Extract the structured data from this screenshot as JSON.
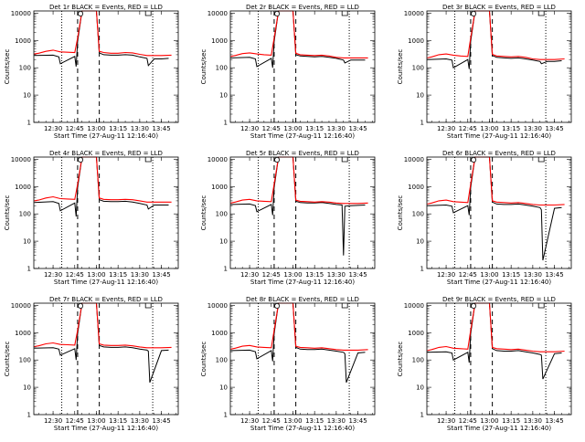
{
  "chart_data": {
    "type": "line",
    "layout": "3x3 grid of panels",
    "yscale": "log",
    "ylim": [
      1,
      12000
    ],
    "y_ticks": [
      1,
      10,
      100,
      1000,
      10000
    ],
    "y_tick_labels": [
      "1",
      "10",
      "100",
      "1000",
      "10000"
    ],
    "ylabel": "Counts/sec",
    "xlabel": "Start Time (27-Aug-11 12:16:40)",
    "xlim": [
      "12:16:40",
      "13:56:40"
    ],
    "x_ticks": [
      "12:30",
      "12:45",
      "13:00",
      "13:15",
      "13:30",
      "13:45"
    ],
    "series_colors": {
      "events": "#000000",
      "lld": "#ff0000"
    },
    "markers": {
      "dashed_lines": [
        "12:47",
        "13:02"
      ],
      "dotted_lines": [
        "12:36",
        "13:39"
      ],
      "saa_symbol": "12:49",
      "note_symbol": "13:34"
    },
    "panels": [
      {
        "title": "Det 1r BLACK = Events, RED = LLD",
        "events": {
          "x": [
            "12:17",
            "12:30",
            "12:34",
            "12:35",
            "12:45",
            "12:46",
            "12:47",
            "12:50",
            "12:52",
            "12:55",
            "13:00",
            "13:02",
            "13:05",
            "13:10",
            "13:15",
            "13:20",
            "13:25",
            "13:30",
            "13:35",
            "13:36",
            "13:40",
            "13:45",
            "13:50"
          ],
          "y": [
            280,
            290,
            250,
            140,
            260,
            110,
            900,
            12000,
            12000,
            12000,
            12000,
            350,
            300,
            290,
            290,
            300,
            290,
            250,
            220,
            120,
            210,
            210,
            220
          ]
        },
        "lld": {
          "x": [
            "12:17",
            "12:20",
            "12:25",
            "12:30",
            "12:35",
            "12:40",
            "12:45",
            "12:47",
            "12:50",
            "12:52",
            "12:55",
            "13:00",
            "13:02",
            "13:05",
            "13:10",
            "13:15",
            "13:20",
            "13:25",
            "13:30",
            "13:35",
            "13:40",
            "13:45",
            "13:52"
          ],
          "y": [
            320,
            340,
            400,
            440,
            380,
            370,
            360,
            1200,
            12000,
            12000,
            12000,
            12000,
            400,
            360,
            340,
            340,
            360,
            350,
            310,
            280,
            280,
            280,
            290
          ]
        }
      },
      {
        "title": "Det 2r BLACK = Events, RED = LLD",
        "events": {
          "x": [
            "12:17",
            "12:30",
            "12:34",
            "12:35",
            "12:45",
            "12:46",
            "12:47",
            "12:50",
            "12:52",
            "12:55",
            "13:00",
            "13:02",
            "13:05",
            "13:10",
            "13:15",
            "13:20",
            "13:25",
            "13:30",
            "13:35",
            "13:36",
            "13:40",
            "13:45",
            "13:50"
          ],
          "y": [
            230,
            240,
            210,
            110,
            220,
            100,
            900,
            12000,
            12000,
            12000,
            12000,
            300,
            270,
            260,
            250,
            260,
            240,
            220,
            190,
            150,
            190,
            190,
            190
          ]
        },
        "lld": {
          "x": [
            "12:17",
            "12:20",
            "12:25",
            "12:30",
            "12:35",
            "12:40",
            "12:45",
            "12:47",
            "12:50",
            "12:52",
            "12:55",
            "13:00",
            "13:02",
            "13:05",
            "13:10",
            "13:15",
            "13:20",
            "13:25",
            "13:30",
            "13:35",
            "13:40",
            "13:45",
            "13:52"
          ],
          "y": [
            260,
            280,
            330,
            350,
            320,
            300,
            290,
            1200,
            12000,
            12000,
            12000,
            12000,
            340,
            300,
            290,
            280,
            290,
            270,
            240,
            230,
            230,
            230,
            230
          ]
        }
      },
      {
        "title": "Det 3r BLACK = Events, RED = LLD",
        "events": {
          "x": [
            "12:17",
            "12:30",
            "12:34",
            "12:35",
            "12:45",
            "12:46",
            "12:47",
            "12:50",
            "12:52",
            "12:55",
            "13:00",
            "13:02",
            "13:05",
            "13:10",
            "13:15",
            "13:20",
            "13:25",
            "13:30",
            "13:35",
            "13:36",
            "13:40",
            "13:45",
            "13:50"
          ],
          "y": [
            200,
            210,
            190,
            100,
            200,
            90,
            900,
            12000,
            12000,
            12000,
            12000,
            280,
            240,
            230,
            220,
            230,
            210,
            190,
            170,
            140,
            170,
            170,
            180
          ]
        },
        "lld": {
          "x": [
            "12:17",
            "12:20",
            "12:25",
            "12:30",
            "12:35",
            "12:40",
            "12:45",
            "12:47",
            "12:50",
            "12:52",
            "12:55",
            "13:00",
            "13:02",
            "13:05",
            "13:10",
            "13:15",
            "13:20",
            "13:25",
            "13:30",
            "13:35",
            "13:40",
            "13:45",
            "13:52"
          ],
          "y": [
            230,
            250,
            300,
            320,
            290,
            270,
            260,
            1200,
            12000,
            12000,
            12000,
            12000,
            310,
            270,
            260,
            250,
            260,
            240,
            210,
            200,
            200,
            200,
            210
          ]
        }
      },
      {
        "title": "Det 4r BLACK = Events, RED = LLD",
        "events": {
          "x": [
            "12:17",
            "12:30",
            "12:34",
            "12:35",
            "12:45",
            "12:46",
            "12:47",
            "12:50",
            "12:52",
            "12:55",
            "13:00",
            "13:02",
            "13:05",
            "13:10",
            "13:15",
            "13:20",
            "13:25",
            "13:30",
            "13:35",
            "13:36",
            "13:40",
            "13:45",
            "13:50"
          ],
          "y": [
            260,
            280,
            240,
            130,
            250,
            80,
            900,
            12000,
            12000,
            12000,
            12000,
            330,
            290,
            280,
            280,
            290,
            270,
            240,
            210,
            150,
            210,
            210,
            210
          ]
        },
        "lld": {
          "x": [
            "12:17",
            "12:20",
            "12:25",
            "12:30",
            "12:35",
            "12:40",
            "12:45",
            "12:47",
            "12:50",
            "12:52",
            "12:55",
            "13:00",
            "13:02",
            "13:05",
            "13:10",
            "13:15",
            "13:20",
            "13:25",
            "13:30",
            "13:35",
            "13:40",
            "13:45",
            "13:52"
          ],
          "y": [
            300,
            320,
            380,
            420,
            360,
            350,
            340,
            1200,
            12000,
            12000,
            12000,
            12000,
            380,
            340,
            330,
            330,
            340,
            330,
            300,
            270,
            270,
            270,
            270
          ]
        }
      },
      {
        "title": "Det 5r BLACK = Events, RED = LLD",
        "events": {
          "x": [
            "12:17",
            "12:30",
            "12:34",
            "12:35",
            "12:45",
            "12:46",
            "12:47",
            "12:50",
            "12:52",
            "12:55",
            "13:00",
            "13:02",
            "13:05",
            "13:10",
            "13:15",
            "13:20",
            "13:25",
            "13:30",
            "13:34",
            "13:35",
            "13:36",
            "13:40",
            "13:50"
          ],
          "y": [
            220,
            230,
            200,
            120,
            220,
            90,
            900,
            12000,
            12000,
            12000,
            12000,
            290,
            260,
            250,
            250,
            260,
            240,
            220,
            210,
            3,
            190,
            200,
            210
          ]
        },
        "lld": {
          "x": [
            "12:17",
            "12:20",
            "12:25",
            "12:30",
            "12:35",
            "12:40",
            "12:45",
            "12:47",
            "12:50",
            "12:52",
            "12:55",
            "13:00",
            "13:02",
            "13:05",
            "13:10",
            "13:15",
            "13:20",
            "13:25",
            "13:30",
            "13:35",
            "13:40",
            "13:45",
            "13:52"
          ],
          "y": [
            250,
            270,
            320,
            340,
            300,
            290,
            280,
            1200,
            12000,
            12000,
            12000,
            12000,
            320,
            290,
            280,
            270,
            280,
            270,
            250,
            240,
            240,
            240,
            250
          ]
        }
      },
      {
        "title": "Det 6r BLACK = Events, RED = LLD",
        "events": {
          "x": [
            "12:17",
            "12:30",
            "12:34",
            "12:35",
            "12:45",
            "12:46",
            "12:47",
            "12:50",
            "12:52",
            "12:55",
            "13:00",
            "13:02",
            "13:05",
            "13:10",
            "13:15",
            "13:20",
            "13:25",
            "13:30",
            "13:35",
            "13:36",
            "13:37",
            "13:45",
            "13:50"
          ],
          "y": [
            200,
            210,
            190,
            110,
            200,
            90,
            900,
            12000,
            12000,
            12000,
            12000,
            270,
            230,
            220,
            220,
            230,
            210,
            190,
            170,
            140,
            2,
            160,
            170
          ]
        },
        "lld": {
          "x": [
            "12:17",
            "12:20",
            "12:25",
            "12:30",
            "12:35",
            "12:40",
            "12:45",
            "12:47",
            "12:50",
            "12:52",
            "12:55",
            "13:00",
            "13:02",
            "13:05",
            "13:10",
            "13:15",
            "13:20",
            "13:25",
            "13:30",
            "13:35",
            "13:40",
            "13:45",
            "13:52"
          ],
          "y": [
            230,
            250,
            300,
            320,
            280,
            270,
            260,
            1200,
            12000,
            12000,
            12000,
            12000,
            300,
            270,
            260,
            250,
            260,
            240,
            220,
            210,
            210,
            210,
            220
          ]
        }
      },
      {
        "title": "Det 7r BLACK = Events, RED = LLD",
        "events": {
          "x": [
            "12:17",
            "12:30",
            "12:34",
            "12:35",
            "12:45",
            "12:46",
            "12:47",
            "12:50",
            "12:52",
            "12:55",
            "13:00",
            "13:02",
            "13:05",
            "13:10",
            "13:15",
            "13:20",
            "13:25",
            "13:30",
            "13:35",
            "13:36",
            "13:37",
            "13:45",
            "13:50"
          ],
          "y": [
            270,
            280,
            250,
            150,
            260,
            100,
            900,
            12000,
            12000,
            12000,
            12000,
            340,
            300,
            290,
            290,
            300,
            280,
            250,
            230,
            210,
            15,
            220,
            230
          ]
        },
        "lld": {
          "x": [
            "12:17",
            "12:20",
            "12:25",
            "12:30",
            "12:35",
            "12:40",
            "12:45",
            "12:47",
            "12:50",
            "12:52",
            "12:55",
            "13:00",
            "13:02",
            "13:05",
            "13:10",
            "13:15",
            "13:20",
            "13:25",
            "13:30",
            "13:35",
            "13:40",
            "13:45",
            "13:52"
          ],
          "y": [
            310,
            330,
            390,
            420,
            370,
            360,
            350,
            1200,
            12000,
            12000,
            12000,
            12000,
            390,
            350,
            340,
            340,
            350,
            330,
            300,
            280,
            280,
            280,
            290
          ]
        }
      },
      {
        "title": "Det 8r BLACK = Events, RED = LLD",
        "events": {
          "x": [
            "12:17",
            "12:30",
            "12:34",
            "12:35",
            "12:45",
            "12:46",
            "12:47",
            "12:50",
            "12:52",
            "12:55",
            "13:00",
            "13:02",
            "13:05",
            "13:10",
            "13:15",
            "13:20",
            "13:25",
            "13:30",
            "13:35",
            "13:36",
            "13:37",
            "13:45",
            "13:50"
          ],
          "y": [
            220,
            230,
            200,
            110,
            220,
            90,
            900,
            12000,
            12000,
            12000,
            12000,
            290,
            250,
            240,
            240,
            250,
            230,
            210,
            190,
            170,
            15,
            180,
            190
          ]
        },
        "lld": {
          "x": [
            "12:17",
            "12:20",
            "12:25",
            "12:30",
            "12:35",
            "12:40",
            "12:45",
            "12:47",
            "12:50",
            "12:52",
            "12:55",
            "13:00",
            "13:02",
            "13:05",
            "13:10",
            "13:15",
            "13:20",
            "13:25",
            "13:30",
            "13:35",
            "13:40",
            "13:45",
            "13:52"
          ],
          "y": [
            250,
            270,
            320,
            340,
            300,
            290,
            280,
            1200,
            12000,
            12000,
            12000,
            12000,
            320,
            290,
            280,
            270,
            280,
            260,
            240,
            230,
            230,
            230,
            240
          ]
        }
      },
      {
        "title": "Det 9r BLACK = Events, RED = LLD",
        "events": {
          "x": [
            "12:17",
            "12:30",
            "12:34",
            "12:35",
            "12:45",
            "12:46",
            "12:47",
            "12:50",
            "12:52",
            "12:55",
            "13:00",
            "13:02",
            "13:05",
            "13:10",
            "13:15",
            "13:20",
            "13:25",
            "13:30",
            "13:35",
            "13:36",
            "13:37",
            "13:45",
            "13:50"
          ],
          "y": [
            190,
            200,
            180,
            100,
            190,
            80,
            900,
            12000,
            12000,
            12000,
            12000,
            260,
            220,
            210,
            210,
            220,
            200,
            180,
            160,
            150,
            20,
            170,
            180
          ]
        },
        "lld": {
          "x": [
            "12:17",
            "12:20",
            "12:25",
            "12:30",
            "12:35",
            "12:40",
            "12:45",
            "12:47",
            "12:50",
            "12:52",
            "12:55",
            "13:00",
            "13:02",
            "13:05",
            "13:10",
            "13:15",
            "13:20",
            "13:25",
            "13:30",
            "13:35",
            "13:40",
            "13:45",
            "13:52"
          ],
          "y": [
            220,
            240,
            290,
            310,
            270,
            260,
            250,
            1200,
            12000,
            12000,
            12000,
            12000,
            290,
            260,
            250,
            240,
            250,
            230,
            210,
            200,
            200,
            200,
            210
          ]
        }
      }
    ]
  }
}
